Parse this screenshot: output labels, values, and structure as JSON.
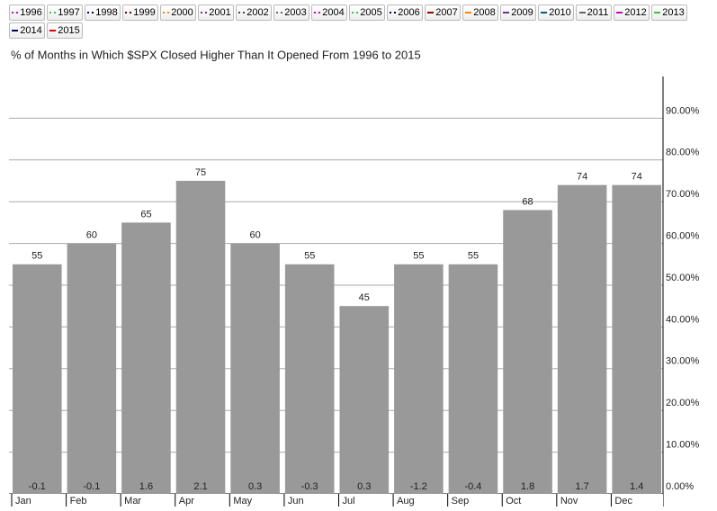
{
  "legend": [
    {
      "label": "1996",
      "color": "#cc00cc",
      "style": "dotted"
    },
    {
      "label": "1997",
      "color": "#33cc33",
      "style": "dotted"
    },
    {
      "label": "1998",
      "color": "#000066",
      "style": "dotted"
    },
    {
      "label": "1999",
      "color": "#660000",
      "style": "dotted"
    },
    {
      "label": "2000",
      "color": "#ff8800",
      "style": "dotted"
    },
    {
      "label": "2001",
      "color": "#663399",
      "style": "dotted"
    },
    {
      "label": "2002",
      "color": "#334455",
      "style": "dotted"
    },
    {
      "label": "2003",
      "color": "#666666",
      "style": "dotted"
    },
    {
      "label": "2004",
      "color": "#cc00cc",
      "style": "dotted"
    },
    {
      "label": "2005",
      "color": "#33cc33",
      "style": "dotted"
    },
    {
      "label": "2006",
      "color": "#000066",
      "style": "dotted"
    },
    {
      "label": "2007",
      "color": "#990000",
      "style": "solid"
    },
    {
      "label": "2008",
      "color": "#ff8800",
      "style": "solid"
    },
    {
      "label": "2009",
      "color": "#663399",
      "style": "solid"
    },
    {
      "label": "2010",
      "color": "#006666",
      "style": "solid"
    },
    {
      "label": "2011",
      "color": "#666666",
      "style": "solid"
    },
    {
      "label": "2012",
      "color": "#cc00cc",
      "style": "solid"
    },
    {
      "label": "2013",
      "color": "#33cc33",
      "style": "solid"
    },
    {
      "label": "2014",
      "color": "#000066",
      "style": "solid"
    },
    {
      "label": "2015",
      "color": "#dd0000",
      "style": "solid"
    }
  ],
  "chart_data": {
    "type": "bar",
    "title": "% of Months in Which $SPX Closed Higher Than It Opened From 1996 to 2015",
    "categories": [
      "Jan",
      "Feb",
      "Mar",
      "Apr",
      "May",
      "Jun",
      "Jul",
      "Aug",
      "Sep",
      "Oct",
      "Nov",
      "Dec"
    ],
    "series": [
      {
        "color": "#999999",
        "values": [
          55,
          60,
          65,
          75,
          60,
          55,
          45,
          55,
          55,
          68,
          74,
          74
        ]
      },
      {
        "values": [
          -0.1,
          -0.1,
          1.6,
          2.1,
          0.3,
          -0.3,
          0.3,
          -1.2,
          -0.4,
          1.8,
          1.7,
          1.4
        ]
      }
    ],
    "ylim": [
      0,
      100
    ],
    "yticks": [
      {
        "value": 0,
        "label": "0.00%"
      },
      {
        "value": 10,
        "label": "10.00%"
      },
      {
        "value": 20,
        "label": "20.00%"
      },
      {
        "value": 30,
        "label": "30.00%"
      },
      {
        "value": 40,
        "label": "40.00%"
      },
      {
        "value": 50,
        "label": "50.00%"
      },
      {
        "value": 60,
        "label": "60.00%"
      },
      {
        "value": 70,
        "label": "70.00%"
      },
      {
        "value": 80,
        "label": "80.00%"
      },
      {
        "value": 90,
        "label": "90.00%"
      }
    ],
    "grid": true
  }
}
